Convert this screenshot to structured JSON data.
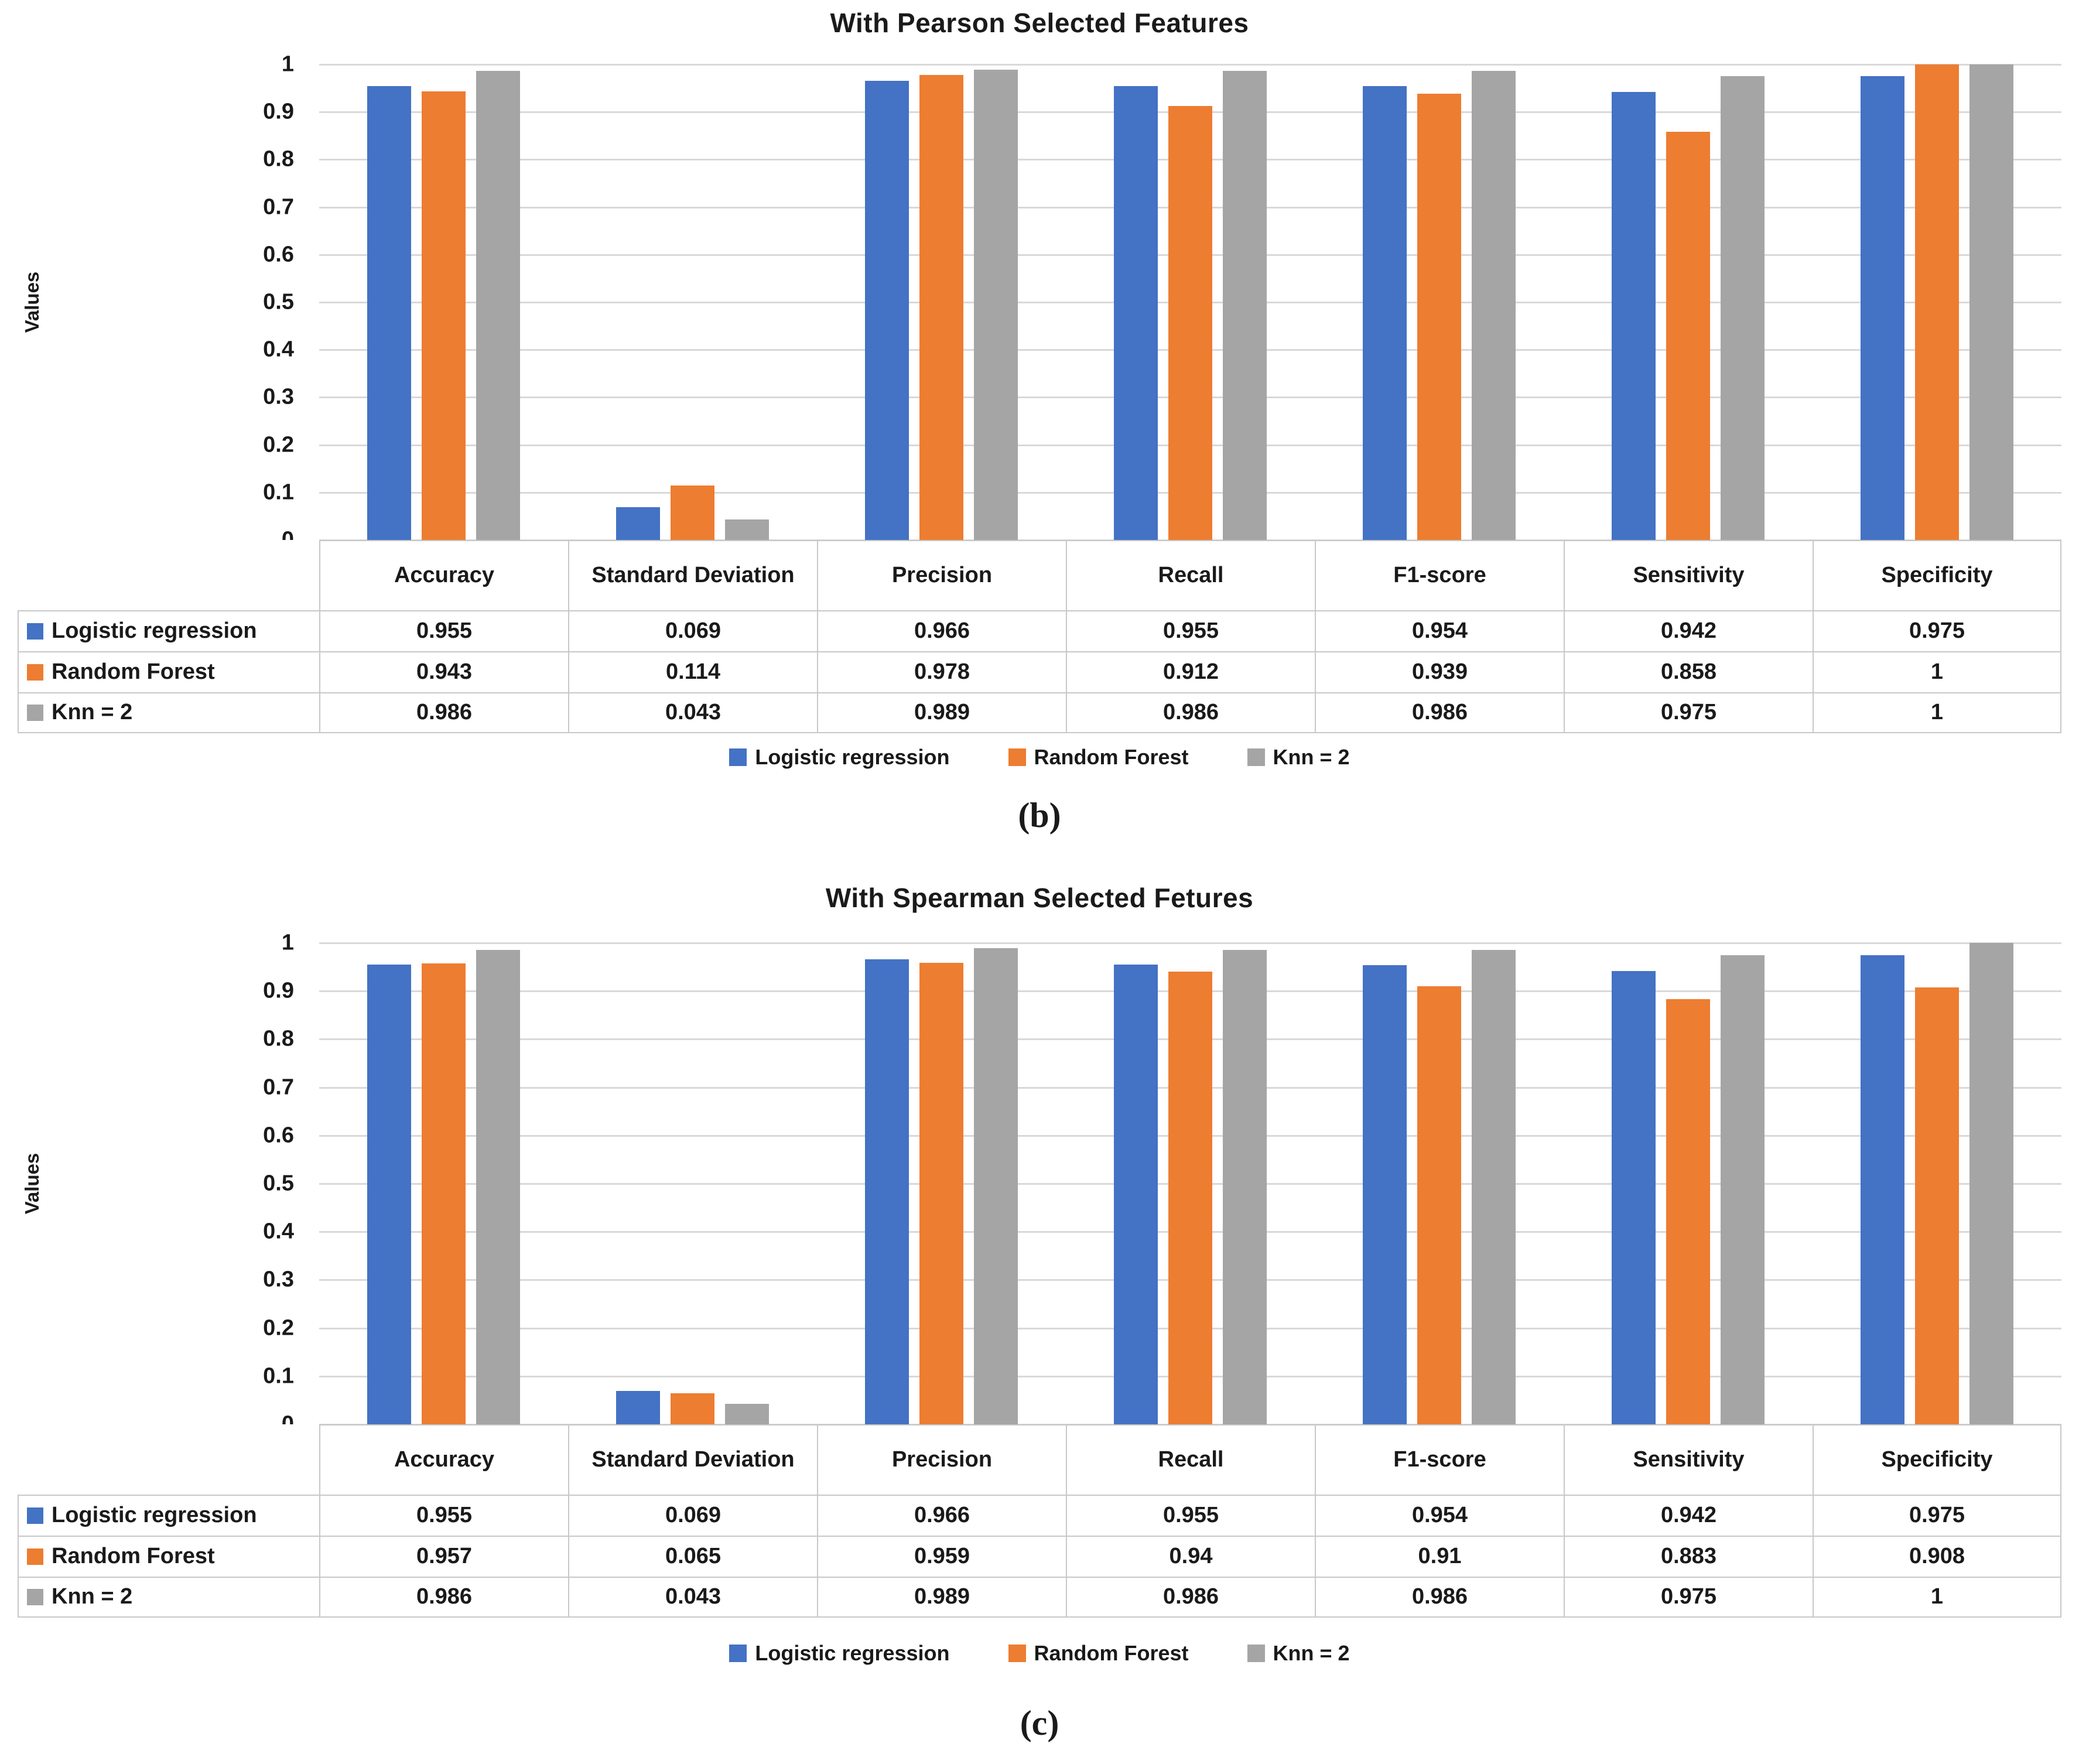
{
  "colors": {
    "series": [
      "#4472C4",
      "#ED7D31",
      "#A5A5A5"
    ],
    "gridline": "#D9D9D9",
    "table_border": "#C8C8C8",
    "text": "#1a1a1a",
    "background": "#ffffff"
  },
  "chart_data": [
    {
      "type": "bar",
      "title": "With Pearson Selected Features",
      "ylabel": "Values",
      "caption": "(b)",
      "ylim": [
        0,
        1
      ],
      "yticks": [
        "1",
        "0.9",
        "0.8",
        "0.7",
        "0.6",
        "0.5",
        "0.4",
        "0.3",
        "0.2",
        "0.1",
        "0"
      ],
      "grid": "horizontal",
      "legend_position": "bottom",
      "categories": [
        "Accuracy",
        "Standard Deviation",
        "Precision",
        "Recall",
        "F1-score",
        "Sensitivity",
        "Specificity"
      ],
      "series": [
        {
          "name": "Logistic regression",
          "values": [
            "0.955",
            "0.069",
            "0.966",
            "0.955",
            "0.954",
            "0.942",
            "0.975"
          ]
        },
        {
          "name": "Random Forest",
          "values": [
            "0.943",
            "0.114",
            "0.978",
            "0.912",
            "0.939",
            "0.858",
            "1"
          ]
        },
        {
          "name": "Knn = 2",
          "values": [
            "0.986",
            "0.043",
            "0.989",
            "0.986",
            "0.986",
            "0.975",
            "1"
          ]
        }
      ]
    },
    {
      "type": "bar",
      "title": "With Spearman Selected Fetures",
      "ylabel": "Values",
      "caption": "(c)",
      "ylim": [
        0,
        1
      ],
      "yticks": [
        "1",
        "0.9",
        "0.8",
        "0.7",
        "0.6",
        "0.5",
        "0.4",
        "0.3",
        "0.2",
        "0.1",
        "0"
      ],
      "grid": "horizontal",
      "legend_position": "bottom",
      "categories": [
        "Accuracy",
        "Standard Deviation",
        "Precision",
        "Recall",
        "F1-score",
        "Sensitivity",
        "Specificity"
      ],
      "series": [
        {
          "name": "Logistic regression",
          "values": [
            "0.955",
            "0.069",
            "0.966",
            "0.955",
            "0.954",
            "0.942",
            "0.975"
          ]
        },
        {
          "name": "Random Forest",
          "values": [
            "0.957",
            "0.065",
            "0.959",
            "0.94",
            "0.91",
            "0.883",
            "0.908"
          ]
        },
        {
          "name": "Knn = 2",
          "values": [
            "0.986",
            "0.043",
            "0.989",
            "0.986",
            "0.986",
            "0.975",
            "1"
          ]
        }
      ]
    }
  ]
}
